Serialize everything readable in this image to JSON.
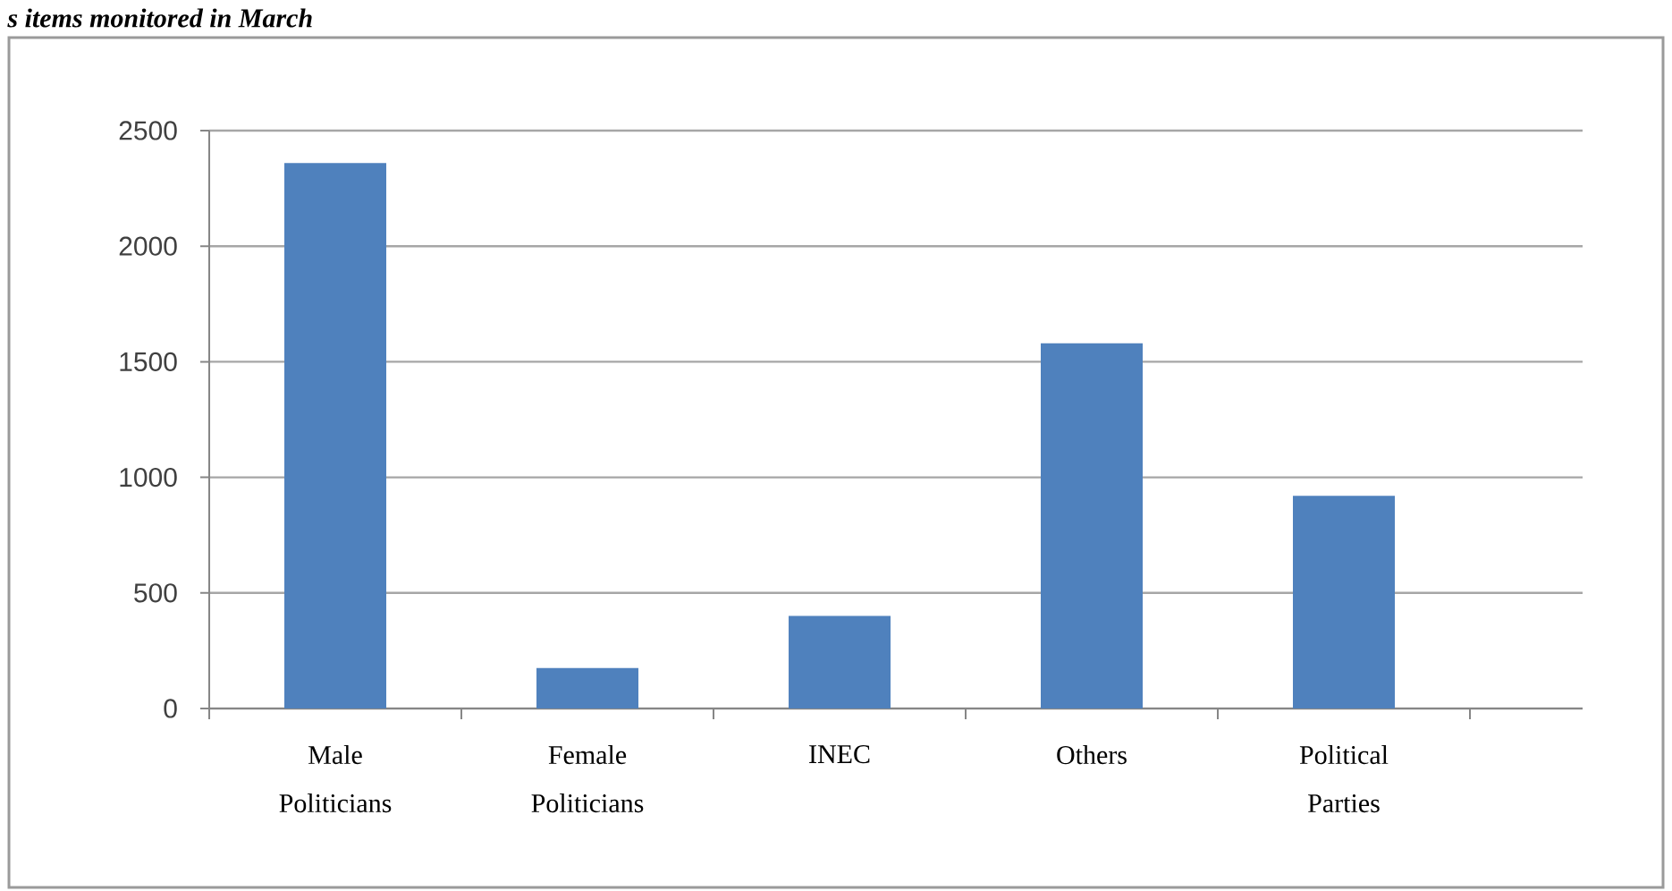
{
  "chart_data": {
    "type": "bar",
    "title": "s items monitored in March",
    "categories": [
      "Male Politicians",
      "Female Politicians",
      "INEC",
      "Others",
      "Political Parties"
    ],
    "values": [
      2360,
      175,
      400,
      1580,
      920
    ],
    "color": "#4f81bd",
    "ylim": [
      0,
      2500
    ],
    "yticks": [
      0,
      500,
      1000,
      1500,
      2000,
      2500
    ],
    "grid": "y"
  }
}
